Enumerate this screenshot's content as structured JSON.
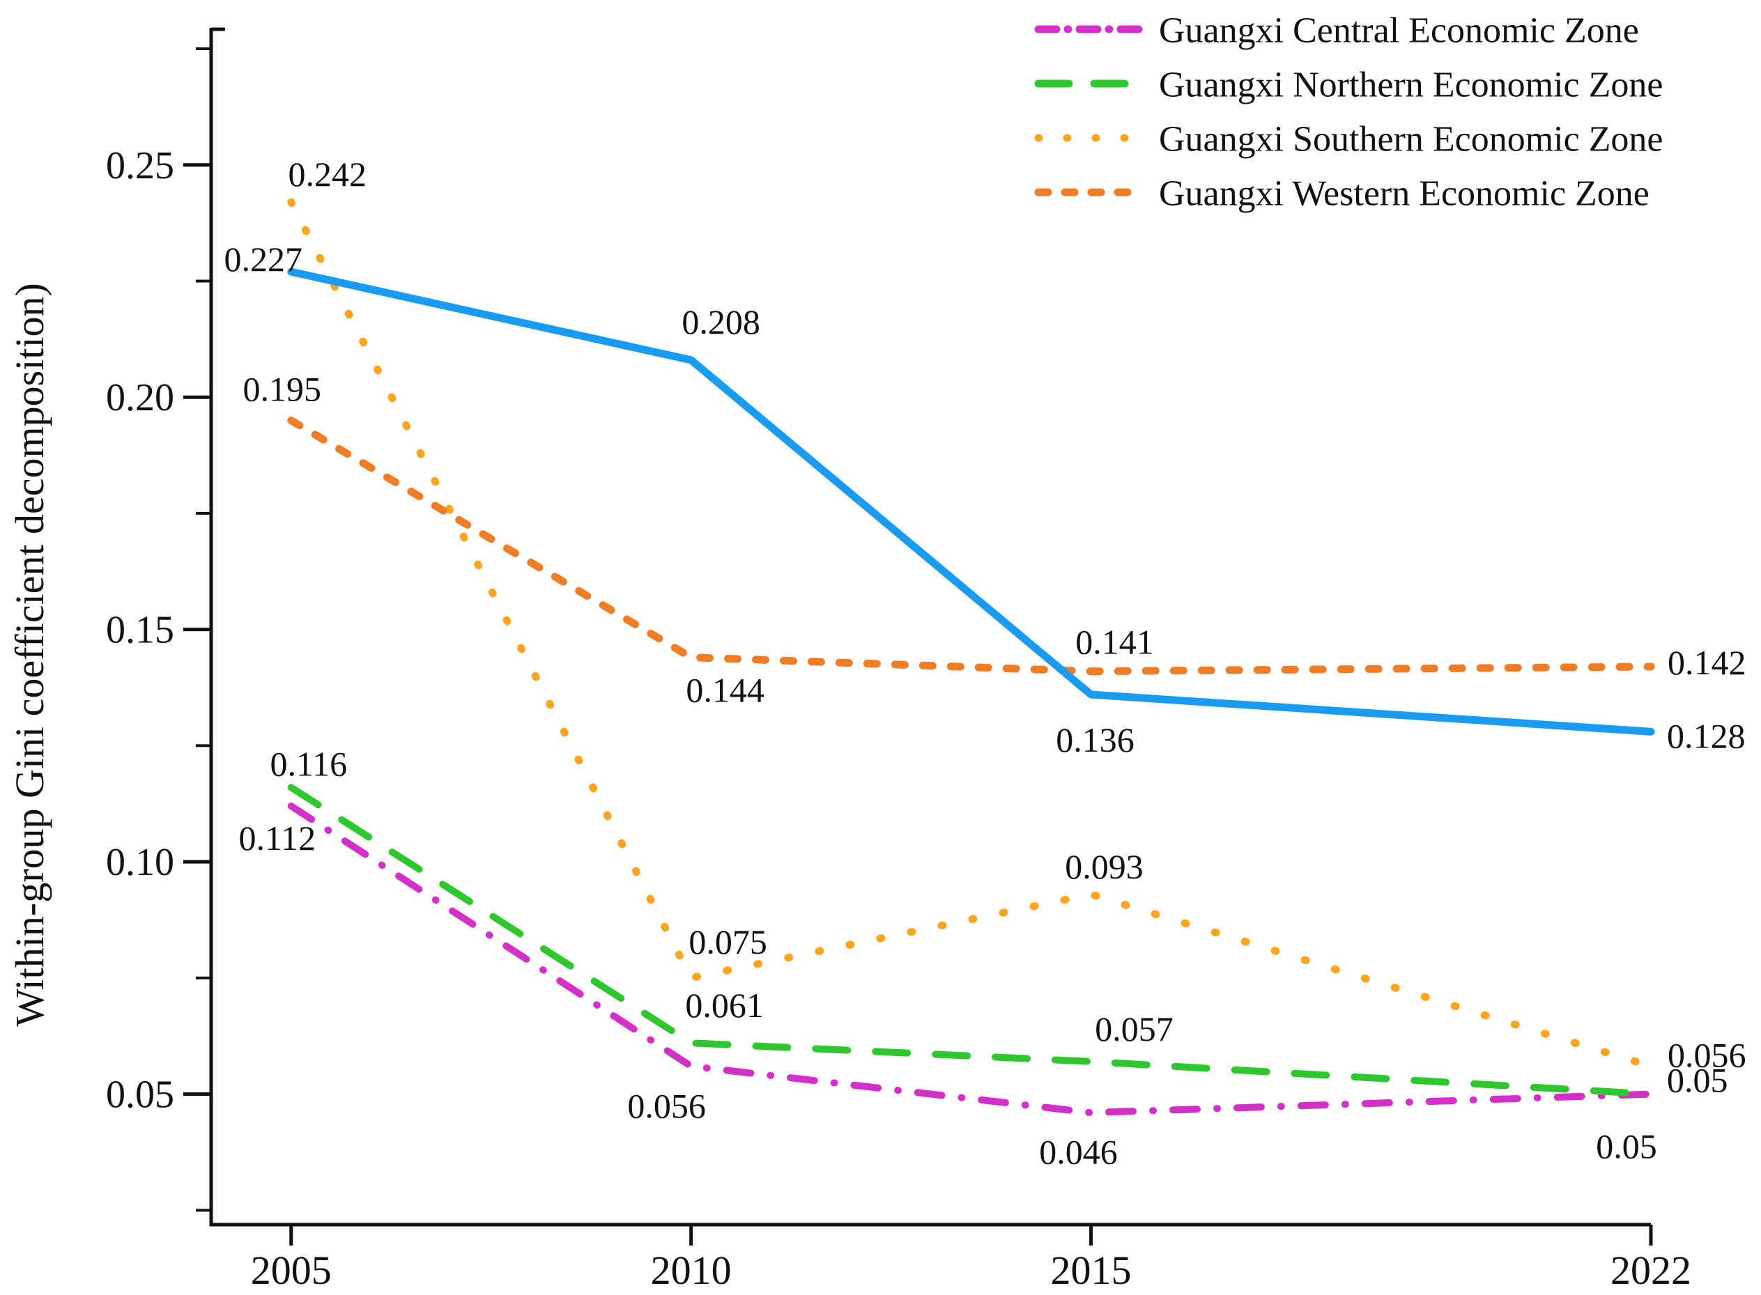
{
  "chart_data": {
    "type": "line",
    "title": "",
    "xlabel": "",
    "ylabel": "Within-group Gini coefficient decomposition)",
    "x": [
      2005,
      2010,
      2015,
      2022
    ],
    "x_tick_labels": [
      "2005",
      "2010",
      "2015",
      "2022"
    ],
    "xlim": [
      2004,
      2022
    ],
    "ylim": [
      0.0219,
      0.2795
    ],
    "grid": false,
    "y_major_ticks": [
      {
        "value": 0.05,
        "label": "0.05"
      },
      {
        "value": 0.1,
        "label": "0.10"
      },
      {
        "value": 0.15,
        "label": "0.15"
      },
      {
        "value": 0.2,
        "label": "0.20"
      },
      {
        "value": 0.25,
        "label": "0.25"
      }
    ],
    "y_minor_ticks": [
      0.025,
      0.075,
      0.125,
      0.175,
      0.225,
      0.275
    ],
    "axis_color": "#111111",
    "legend_position": "top-right",
    "series": [
      {
        "id": "southern",
        "name": "Guangxi Southern Economic Zone",
        "color": "#ffa41e",
        "line_style": "dotted",
        "in_legend": true,
        "values": [
          0.242,
          0.075,
          0.093,
          0.056
        ],
        "point_labels": [
          "0.242",
          "0.075",
          "0.093",
          "0.056"
        ],
        "label_offsets": [
          {
            "dx": 52,
            "dy": -40,
            "anchor": "middle"
          },
          {
            "dx": 53,
            "dy": -52,
            "anchor": "middle"
          },
          {
            "dx": 19,
            "dy": -40,
            "anchor": "middle"
          },
          {
            "dx": 24,
            "dy": -16,
            "anchor": "start"
          }
        ]
      },
      {
        "id": "western",
        "name": "Guangxi Western Economic Zone",
        "color": "#f07d26",
        "line_style": "dashed-short",
        "in_legend": true,
        "values": [
          0.195,
          0.144,
          0.141,
          0.142
        ],
        "point_labels": [
          "0.195",
          "0.144",
          "0.141",
          "0.142"
        ],
        "label_offsets": [
          {
            "dx": -13,
            "dy": -45,
            "anchor": "middle"
          },
          {
            "dx": 49,
            "dy": 47,
            "anchor": "middle"
          },
          {
            "dx": 34,
            "dy": -42,
            "anchor": "middle"
          },
          {
            "dx": 24,
            "dy": -6,
            "anchor": "start"
          }
        ]
      },
      {
        "id": "central",
        "name": "Guangxi Central Economic Zone",
        "color": "#d42fc8",
        "line_style": "dash-dot",
        "in_legend": true,
        "values": [
          0.112,
          0.056,
          0.046,
          0.05
        ],
        "point_labels": [
          "0.112",
          "0.056",
          "0.046",
          "0.05"
        ],
        "label_offsets": [
          {
            "dx": -20,
            "dy": 46,
            "anchor": "middle"
          },
          {
            "dx": -35,
            "dy": 57,
            "anchor": "middle"
          },
          {
            "dx": -18,
            "dy": 56,
            "anchor": "middle"
          },
          {
            "dx": -35,
            "dy": 75,
            "anchor": "middle"
          }
        ]
      },
      {
        "id": "northern",
        "name": "Guangxi Northern Economic Zone",
        "color": "#2ec82e",
        "line_style": "dashed-long",
        "in_legend": true,
        "values": [
          0.116,
          0.061,
          0.057,
          0.05
        ],
        "point_labels": [
          "0.116",
          "0.061",
          "0.057",
          "0.05"
        ],
        "label_offsets": [
          {
            "dx": 25,
            "dy": -34,
            "anchor": "middle"
          },
          {
            "dx": 48,
            "dy": -54,
            "anchor": "middle"
          },
          {
            "dx": 62,
            "dy": -47,
            "anchor": "middle"
          },
          {
            "dx": 23,
            "dy": -20,
            "anchor": "start"
          }
        ]
      },
      {
        "id": "blue-solid",
        "name": "",
        "color": "#199bf2",
        "line_style": "solid",
        "in_legend": false,
        "values": [
          0.227,
          0.208,
          0.136,
          0.128
        ],
        "point_labels": [
          "0.227",
          "0.208",
          "0.136",
          "0.128"
        ],
        "label_offsets": [
          {
            "dx": -40,
            "dy": -18,
            "anchor": "middle"
          },
          {
            "dx": 43,
            "dy": -55,
            "anchor": "middle"
          },
          {
            "dx": 6,
            "dy": 65,
            "anchor": "middle"
          },
          {
            "dx": 23,
            "dy": 6,
            "anchor": "start"
          }
        ]
      }
    ],
    "legend_entries": [
      {
        "series": "central",
        "label": "Guangxi Central Economic Zone"
      },
      {
        "series": "northern",
        "label": "Guangxi Northern Economic Zone"
      },
      {
        "series": "southern",
        "label": "Guangxi Southern Economic Zone"
      },
      {
        "series": "western",
        "label": "Guangxi Western Economic Zone"
      }
    ]
  }
}
